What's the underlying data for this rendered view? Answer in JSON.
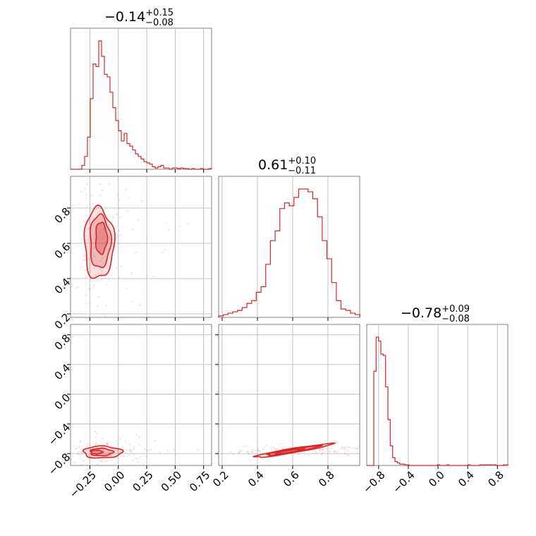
{
  "chart_data": {
    "type": "corner",
    "color": "#d62728",
    "parameters": [
      {
        "index": 0,
        "median": -0.14,
        "plus": 0.15,
        "minus": 0.08,
        "range": [
          -0.42,
          0.82
        ],
        "ticks": [
          -0.25,
          0.0,
          0.25,
          0.5,
          0.75
        ]
      },
      {
        "index": 1,
        "median": 0.61,
        "plus": 0.1,
        "minus": 0.11,
        "range": [
          0.18,
          0.98
        ],
        "ticks": [
          0.2,
          0.4,
          0.6,
          0.8
        ]
      },
      {
        "index": 2,
        "median": -0.78,
        "plus": 0.09,
        "minus": 0.08,
        "range": [
          -0.96,
          0.94
        ],
        "ticks": [
          -0.8,
          -0.4,
          0.0,
          0.4,
          0.8
        ]
      }
    ],
    "titles": [
      {
        "main": "−0.14",
        "sup": "+0.15",
        "sub": "−0.08"
      },
      {
        "main": "0.61",
        "sup": "+0.10",
        "sub": "−0.11"
      },
      {
        "main": "−0.78",
        "sup": "+0.09",
        "sub": "−0.08"
      }
    ],
    "tick_labels": {
      "p0": [
        "−0.25",
        "0.00",
        "0.25",
        "0.50",
        "0.75"
      ],
      "p1": [
        "0.2",
        "0.4",
        "0.6",
        "0.8"
      ],
      "p2": [
        "−0.8",
        "−0.4",
        "0.0",
        "0.4",
        "0.8"
      ]
    },
    "histograms": [
      {
        "param": 0,
        "bin_start": -0.42,
        "bin_width": 0.0248,
        "counts": [
          0,
          0,
          0,
          0,
          0.03,
          0.1,
          0.25,
          0.55,
          0.82,
          0.8,
          1.0,
          0.88,
          0.74,
          0.72,
          0.6,
          0.48,
          0.38,
          0.3,
          0.22,
          0.28,
          0.2,
          0.18,
          0.15,
          0.12,
          0.1,
          0.08,
          0.06,
          0.05,
          0.04,
          0.02,
          0.01,
          0.02,
          0.03,
          0.01,
          0.01,
          0.0,
          0.01,
          0.01,
          0.005,
          0.01,
          0.005,
          0.005,
          0,
          0.005,
          0,
          0,
          0.005,
          0,
          0,
          0.005
        ]
      },
      {
        "param": 1,
        "bin_start": 0.18,
        "bin_width": 0.0267,
        "counts": [
          0.01,
          0.02,
          0.03,
          0.04,
          0.05,
          0.07,
          0.1,
          0.12,
          0.18,
          0.22,
          0.38,
          0.55,
          0.62,
          0.78,
          0.82,
          0.8,
          0.86,
          0.92,
          0.92,
          0.9,
          0.85,
          0.72,
          0.55,
          0.42,
          0.25,
          0.12,
          0.06,
          0.05,
          0.03,
          0.02
        ]
      },
      {
        "param": 2,
        "bin_start": -0.96,
        "bin_width": 0.0317,
        "counts": [
          0,
          0,
          0,
          0.72,
          0.98,
          0.95,
          0.85,
          0.84,
          0.6,
          0.35,
          0.15,
          0.06,
          0.03,
          0.02,
          0.01,
          0.01,
          0.005,
          0.005,
          0,
          0,
          0,
          0,
          0,
          0,
          0,
          0,
          0,
          0,
          0,
          0,
          0.005,
          0,
          0,
          0,
          0.005,
          0,
          0,
          0,
          0,
          0,
          0,
          0,
          0,
          0.005,
          0,
          0,
          0,
          0,
          0.005,
          0.005,
          0.005,
          0.005,
          0.005,
          0.005,
          0.005,
          0,
          0,
          0,
          0.005,
          0.005
        ]
      }
    ],
    "contours": [
      {
        "px": 0,
        "py": 1,
        "levels": [
          {
            "cx": -0.17,
            "cy": 0.6,
            "rx": 0.13,
            "ry": 0.2
          },
          {
            "cx": -0.16,
            "cy": 0.61,
            "rx": 0.09,
            "ry": 0.15
          },
          {
            "cx": -0.15,
            "cy": 0.63,
            "rx": 0.05,
            "ry": 0.09
          }
        ]
      },
      {
        "px": 0,
        "py": 2,
        "levels": [
          {
            "cx": -0.14,
            "cy": -0.78,
            "rx": 0.17,
            "ry": 0.08
          },
          {
            "cx": -0.15,
            "cy": -0.78,
            "rx": 0.1,
            "ry": 0.05
          },
          {
            "cx": -0.19,
            "cy": -0.78,
            "rx": 0.05,
            "ry": 0.025
          }
        ]
      },
      {
        "px": 1,
        "py": 2,
        "levels": [
          {
            "cx": 0.6,
            "cy": -0.76,
            "rx": 0.22,
            "ry": 0.03,
            "tilt": 0.4
          },
          {
            "cx": 0.6,
            "cy": -0.76,
            "rx": 0.15,
            "ry": 0.02,
            "tilt": 0.4
          },
          {
            "cx": 0.58,
            "cy": -0.77,
            "rx": 0.08,
            "ry": 0.012,
            "tilt": 0.4
          }
        ]
      }
    ],
    "grid": true
  }
}
